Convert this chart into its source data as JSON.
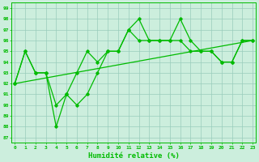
{
  "x": [
    0,
    1,
    2,
    3,
    4,
    5,
    6,
    7,
    8,
    9,
    10,
    11,
    12,
    13,
    14,
    15,
    16,
    17,
    18,
    19,
    20,
    21,
    22,
    23
  ],
  "y_main": [
    92,
    95,
    93,
    93,
    88,
    91,
    90,
    91,
    93,
    95,
    95,
    97,
    98,
    96,
    96,
    96,
    98,
    96,
    95,
    95,
    94,
    94,
    96,
    96
  ],
  "y_smooth": [
    92,
    95,
    93,
    93,
    90,
    91,
    93,
    95,
    94,
    95,
    95,
    97,
    96,
    96,
    96,
    96,
    96,
    95,
    95,
    95,
    94,
    94,
    96,
    96
  ],
  "y_trend_x": [
    0,
    23
  ],
  "y_trend_y": [
    92,
    96
  ],
  "ylim": [
    87,
    99
  ],
  "yticks": [
    87,
    88,
    89,
    90,
    91,
    92,
    93,
    94,
    95,
    96,
    97,
    98,
    99
  ],
  "xlim": [
    0,
    23
  ],
  "xlabel": "Humidité relative (%)",
  "line_color": "#00bb00",
  "bg_color": "#cceedd",
  "grid_color": "#99ccbb",
  "marker": "D"
}
